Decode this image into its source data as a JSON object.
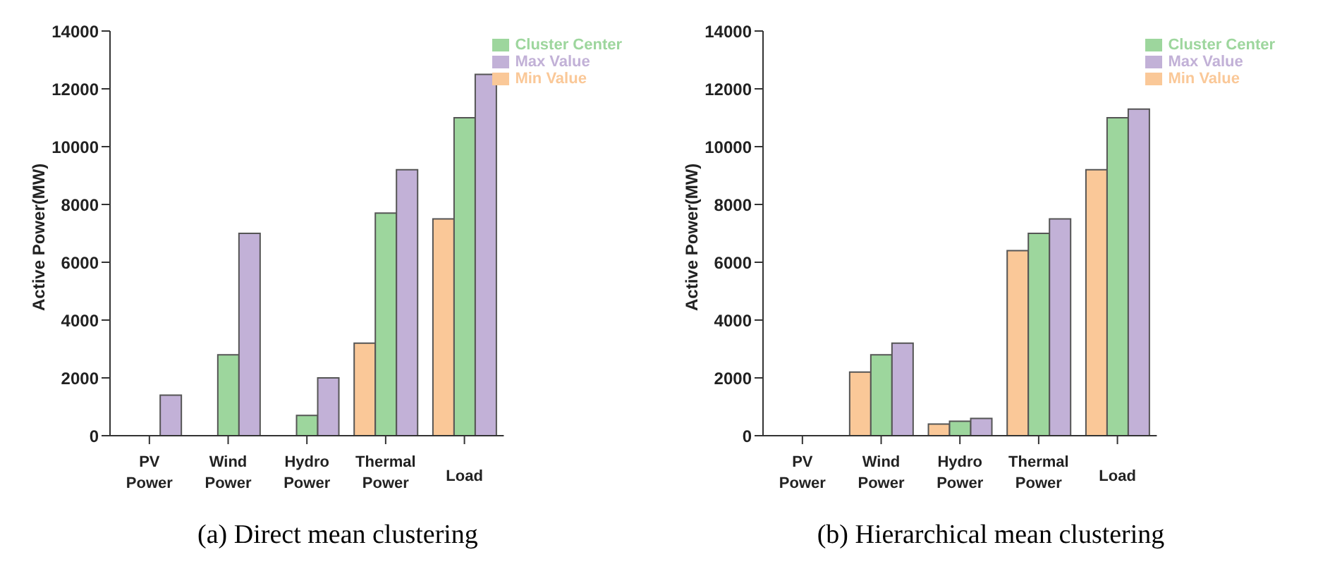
{
  "chart_data": [
    {
      "type": "bar",
      "ylabel": "Active Power(MW)",
      "categories": [
        "PV Power",
        "Wind Power",
        "Hydro Power",
        "Thermal Power",
        "Load"
      ],
      "series": [
        {
          "name": "Min Value",
          "color": "#fac898",
          "values": [
            0,
            0,
            0,
            3200,
            7500
          ]
        },
        {
          "name": "Cluster Center",
          "color": "#9dd69d",
          "values": [
            0,
            2800,
            700,
            7700,
            11000
          ]
        },
        {
          "name": "Max Value",
          "color": "#c2b1d7",
          "values": [
            1400,
            7000,
            2000,
            9200,
            12500
          ]
        }
      ],
      "ylim": [
        0,
        14000
      ],
      "yticks": [
        0,
        2000,
        4000,
        6000,
        8000,
        10000,
        12000,
        14000
      ],
      "grid": false,
      "legend": "top right",
      "annotations": [
        "(a) Direct mean clustering"
      ]
    },
    {
      "type": "bar",
      "ylabel": "Active Power(MW)",
      "categories": [
        "PV Power",
        "Wind Power",
        "Hydro Power",
        "Thermal Power",
        "Load"
      ],
      "series": [
        {
          "name": "Min Value",
          "color": "#fac898",
          "values": [
            0,
            2200,
            400,
            6400,
            9200
          ]
        },
        {
          "name": "Cluster Center",
          "color": "#9dd69d",
          "values": [
            0,
            2800,
            500,
            7000,
            11000
          ]
        },
        {
          "name": "Max Value",
          "color": "#c2b1d7",
          "values": [
            0,
            3200,
            600,
            7500,
            11300
          ]
        }
      ],
      "ylim": [
        0,
        14000
      ],
      "yticks": [
        0,
        2000,
        4000,
        6000,
        8000,
        10000,
        12000,
        14000
      ],
      "grid": false,
      "legend": "top right",
      "annotations": [
        "(b) Hierarchical mean clustering"
      ]
    }
  ]
}
